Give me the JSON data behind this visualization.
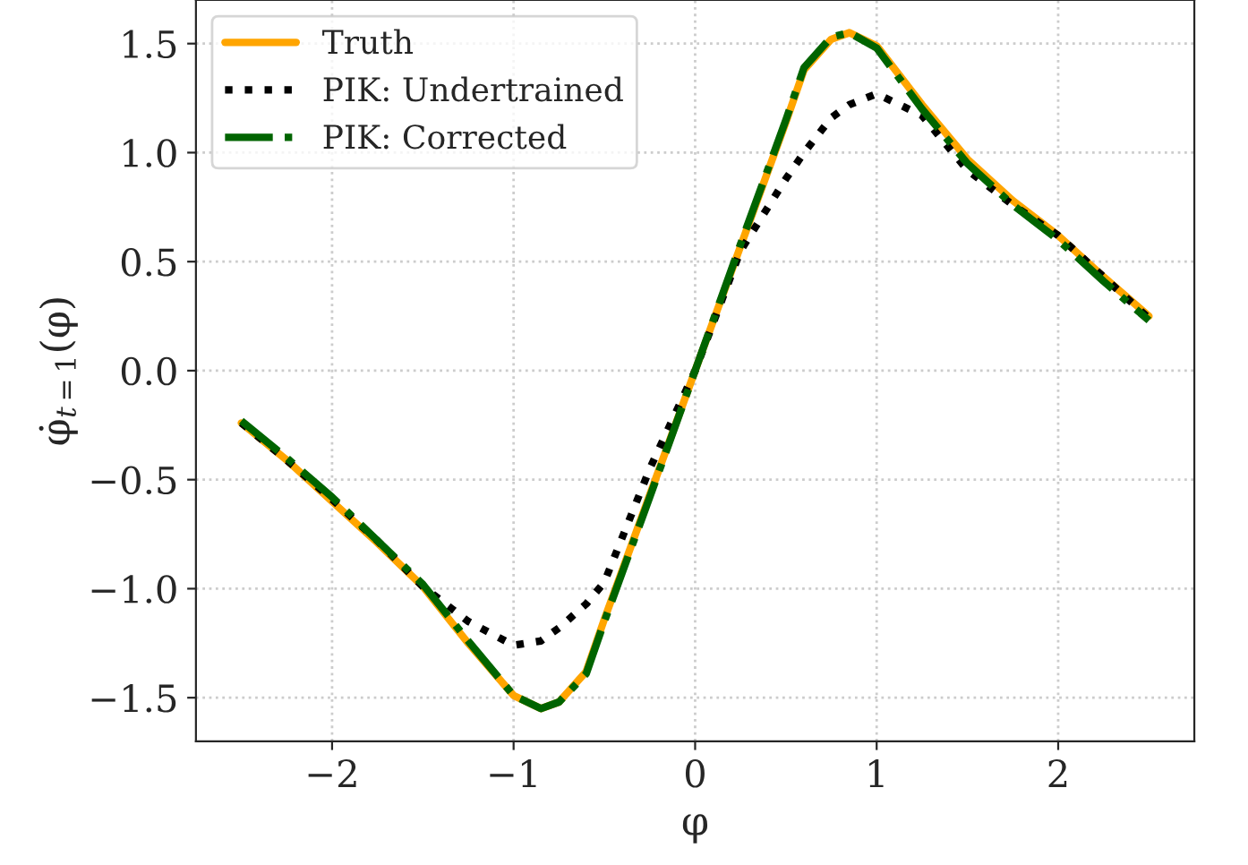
{
  "chart_data": {
    "type": "line",
    "xlabel": "φ",
    "ylabel": "φ̇$_{t=1}$(φ)",
    "x": [
      -2.5,
      -2.25,
      -2.0,
      -1.75,
      -1.5,
      -1.25,
      -1.0,
      -0.85,
      -0.75,
      -0.6,
      -0.5,
      -0.25,
      0.0,
      0.25,
      0.5,
      0.6,
      0.75,
      0.85,
      1.0,
      1.25,
      1.5,
      1.75,
      2.0,
      2.25,
      2.5
    ],
    "series": [
      {
        "name": "Truth",
        "color": "#ffa500",
        "line_style": "solid",
        "values": [
          -0.24,
          -0.41,
          -0.6,
          -0.79,
          -0.99,
          -1.25,
          -1.49,
          -1.55,
          -1.52,
          -1.38,
          -1.14,
          -0.57,
          0.0,
          0.57,
          1.14,
          1.38,
          1.52,
          1.55,
          1.49,
          1.22,
          0.97,
          0.78,
          0.62,
          0.43,
          0.25
        ]
      },
      {
        "name": "PIK: Undertrained",
        "color": "#000000",
        "line_style": "dotted",
        "values": [
          -0.24,
          -0.41,
          -0.59,
          -0.78,
          -0.99,
          -1.15,
          -1.26,
          -1.24,
          -1.18,
          -1.07,
          -0.97,
          -0.45,
          0.0,
          0.55,
          0.88,
          1.0,
          1.16,
          1.22,
          1.27,
          1.17,
          0.92,
          0.76,
          0.62,
          0.43,
          0.24
        ]
      },
      {
        "name": "PIK: Corrected",
        "color": "#006400",
        "line_style": "dashdot",
        "values": [
          -0.23,
          -0.4,
          -0.58,
          -0.78,
          -0.98,
          -1.24,
          -1.49,
          -1.55,
          -1.52,
          -1.39,
          -1.15,
          -0.58,
          0.0,
          0.58,
          1.15,
          1.39,
          1.53,
          1.55,
          1.48,
          1.2,
          0.95,
          0.76,
          0.6,
          0.41,
          0.23
        ]
      }
    ],
    "xlim": [
      -2.75,
      2.75
    ],
    "ylim": [
      -1.7,
      1.7
    ],
    "xticks": [
      {
        "value": -2,
        "label": "−2"
      },
      {
        "value": -1,
        "label": "−1"
      },
      0,
      1,
      2
    ],
    "yticks": [
      {
        "value": -1.5,
        "label": "−1.5"
      },
      {
        "value": -1.0,
        "label": "−1.0"
      },
      {
        "value": -0.5,
        "label": "−0.5"
      },
      {
        "value": 0.0,
        "label": "0.0"
      },
      {
        "value": 0.5,
        "label": "0.5"
      },
      {
        "value": 1.0,
        "label": "1.0"
      },
      {
        "value": 1.5,
        "label": "1.5"
      }
    ],
    "grid": true,
    "legend": "top left"
  }
}
